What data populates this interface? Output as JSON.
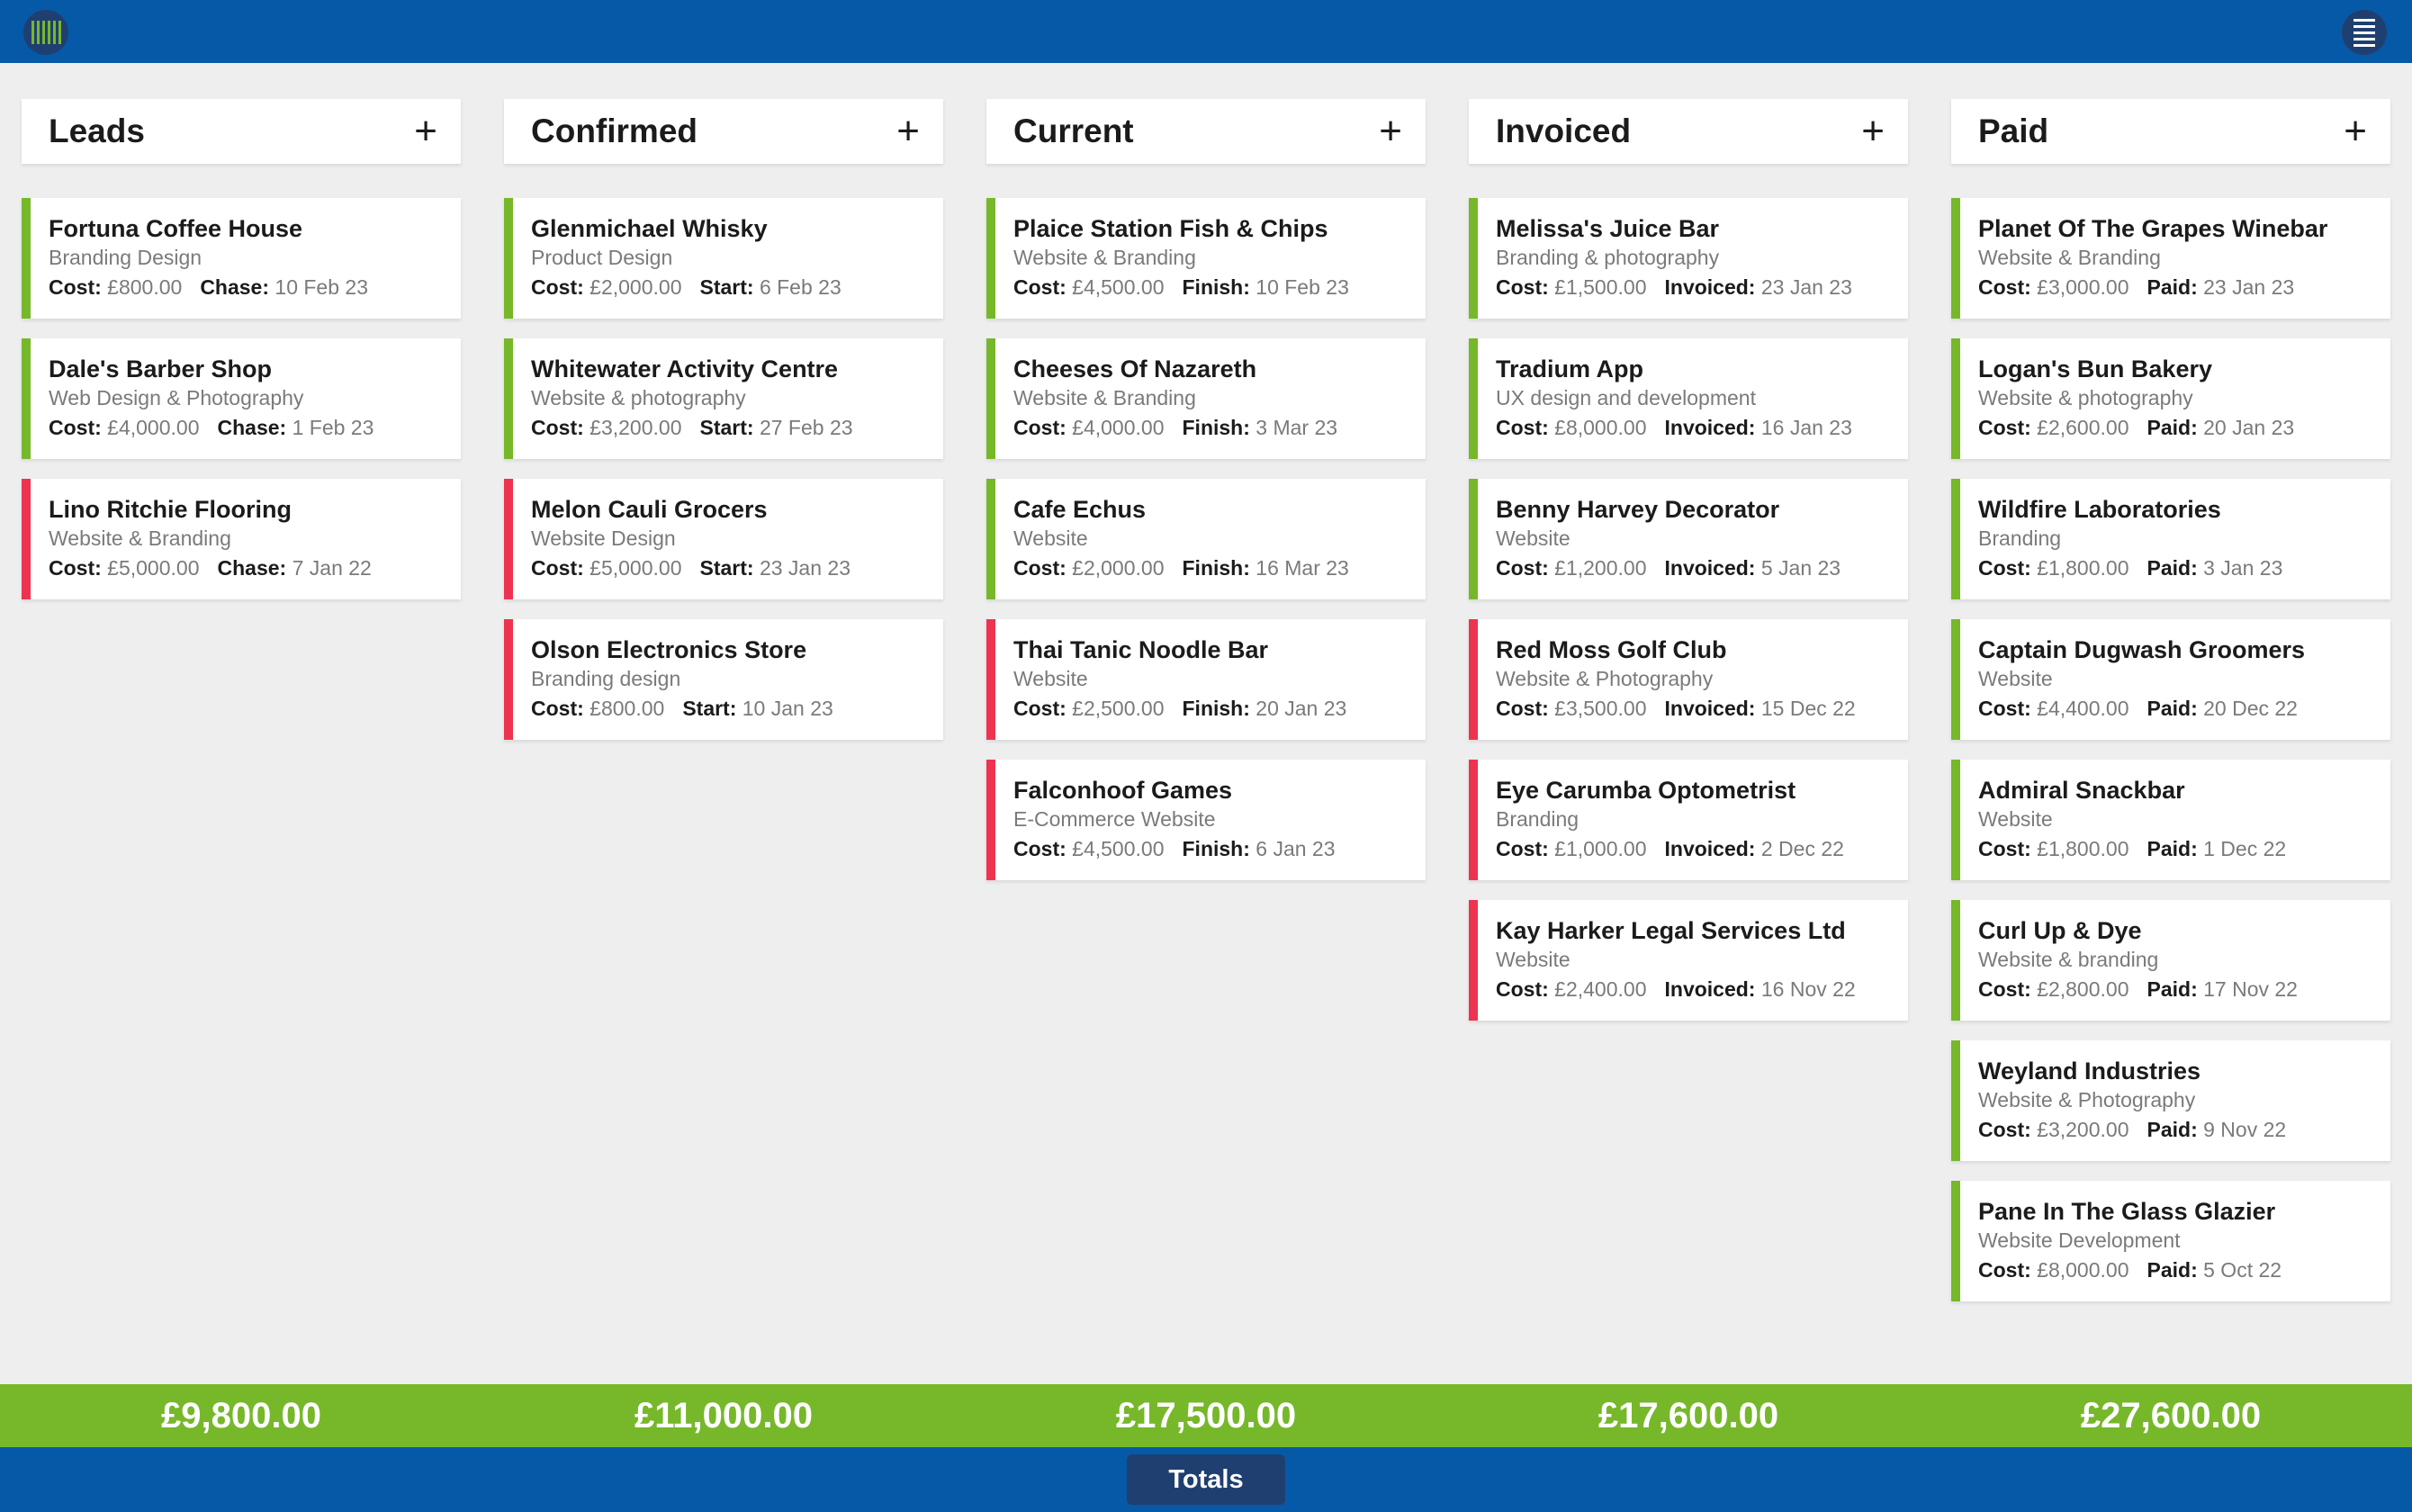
{
  "columns": [
    {
      "title": "Leads",
      "add_label": "+",
      "total": "£9,800.00",
      "cards": [
        {
          "title": "Fortuna Coffee House",
          "subtitle": "Branding Design",
          "cost_label": "Cost:",
          "cost": "£800.00",
          "date_label": "Chase:",
          "date": "10 Feb 23",
          "status": "green"
        },
        {
          "title": "Dale's Barber Shop",
          "subtitle": "Web Design & Photography",
          "cost_label": "Cost:",
          "cost": "£4,000.00",
          "date_label": "Chase:",
          "date": "1 Feb 23",
          "status": "green"
        },
        {
          "title": "Lino Ritchie Flooring",
          "subtitle": "Website & Branding",
          "cost_label": "Cost:",
          "cost": "£5,000.00",
          "date_label": "Chase:",
          "date": "7 Jan 22",
          "status": "red"
        }
      ]
    },
    {
      "title": "Confirmed",
      "add_label": "+",
      "total": "£11,000.00",
      "cards": [
        {
          "title": "Glenmichael Whisky",
          "subtitle": "Product Design",
          "cost_label": "Cost:",
          "cost": "£2,000.00",
          "date_label": "Start:",
          "date": "6 Feb 23",
          "status": "green"
        },
        {
          "title": "Whitewater Activity Centre",
          "subtitle": "Website & photography",
          "cost_label": "Cost:",
          "cost": "£3,200.00",
          "date_label": "Start:",
          "date": "27 Feb 23",
          "status": "green"
        },
        {
          "title": "Melon Cauli Grocers",
          "subtitle": "Website Design",
          "cost_label": "Cost:",
          "cost": "£5,000.00",
          "date_label": "Start:",
          "date": "23 Jan 23",
          "status": "red"
        },
        {
          "title": "Olson Electronics Store",
          "subtitle": "Branding design",
          "cost_label": "Cost:",
          "cost": "£800.00",
          "date_label": "Start:",
          "date": "10 Jan 23",
          "status": "red"
        }
      ]
    },
    {
      "title": "Current",
      "add_label": "+",
      "total": "£17,500.00",
      "cards": [
        {
          "title": "Plaice Station Fish & Chips",
          "subtitle": "Website & Branding",
          "cost_label": "Cost:",
          "cost": "£4,500.00",
          "date_label": "Finish:",
          "date": "10 Feb 23",
          "status": "green"
        },
        {
          "title": "Cheeses Of Nazareth",
          "subtitle": "Website & Branding",
          "cost_label": "Cost:",
          "cost": "£4,000.00",
          "date_label": "Finish:",
          "date": "3 Mar 23",
          "status": "green"
        },
        {
          "title": "Cafe Echus",
          "subtitle": "Website",
          "cost_label": "Cost:",
          "cost": "£2,000.00",
          "date_label": "Finish:",
          "date": "16 Mar 23",
          "status": "green"
        },
        {
          "title": "Thai Tanic Noodle Bar",
          "subtitle": "Website",
          "cost_label": "Cost:",
          "cost": "£2,500.00",
          "date_label": "Finish:",
          "date": "20 Jan 23",
          "status": "red"
        },
        {
          "title": "Falconhoof Games",
          "subtitle": "E-Commerce Website",
          "cost_label": "Cost:",
          "cost": "£4,500.00",
          "date_label": "Finish:",
          "date": "6 Jan 23",
          "status": "red"
        }
      ]
    },
    {
      "title": "Invoiced",
      "add_label": "+",
      "total": "£17,600.00",
      "cards": [
        {
          "title": "Melissa's Juice Bar",
          "subtitle": "Branding & photography",
          "cost_label": "Cost:",
          "cost": "£1,500.00",
          "date_label": "Invoiced:",
          "date": "23 Jan 23",
          "status": "green"
        },
        {
          "title": "Tradium App",
          "subtitle": "UX design and development",
          "cost_label": "Cost:",
          "cost": "£8,000.00",
          "date_label": "Invoiced:",
          "date": "16 Jan 23",
          "status": "green"
        },
        {
          "title": "Benny Harvey Decorator",
          "subtitle": "Website",
          "cost_label": "Cost:",
          "cost": "£1,200.00",
          "date_label": "Invoiced:",
          "date": "5 Jan 23",
          "status": "green"
        },
        {
          "title": "Red Moss Golf Club",
          "subtitle": "Website & Photography",
          "cost_label": "Cost:",
          "cost": "£3,500.00",
          "date_label": "Invoiced:",
          "date": "15 Dec 22",
          "status": "red"
        },
        {
          "title": "Eye Carumba Optometrist",
          "subtitle": "Branding",
          "cost_label": "Cost:",
          "cost": "£1,000.00",
          "date_label": "Invoiced:",
          "date": "2 Dec 22",
          "status": "red"
        },
        {
          "title": "Kay Harker Legal Services Ltd",
          "subtitle": "Website",
          "cost_label": "Cost:",
          "cost": "£2,400.00",
          "date_label": "Invoiced:",
          "date": "16 Nov 22",
          "status": "red"
        }
      ]
    },
    {
      "title": "Paid",
      "add_label": "+",
      "total": "£27,600.00",
      "cards": [
        {
          "title": "Planet Of The Grapes Winebar",
          "subtitle": "Website & Branding",
          "cost_label": "Cost:",
          "cost": "£3,000.00",
          "date_label": "Paid:",
          "date": "23 Jan 23",
          "status": "green"
        },
        {
          "title": "Logan's Bun Bakery",
          "subtitle": "Website & photography",
          "cost_label": "Cost:",
          "cost": "£2,600.00",
          "date_label": "Paid:",
          "date": "20 Jan 23",
          "status": "green"
        },
        {
          "title": "Wildfire Laboratories",
          "subtitle": "Branding",
          "cost_label": "Cost:",
          "cost": "£1,800.00",
          "date_label": "Paid:",
          "date": "3 Jan 23",
          "status": "green"
        },
        {
          "title": "Captain Dugwash Groomers",
          "subtitle": "Website",
          "cost_label": "Cost:",
          "cost": "£4,400.00",
          "date_label": "Paid:",
          "date": "20 Dec 22",
          "status": "green"
        },
        {
          "title": "Admiral Snackbar",
          "subtitle": "Website",
          "cost_label": "Cost:",
          "cost": "£1,800.00",
          "date_label": "Paid:",
          "date": "1 Dec 22",
          "status": "green"
        },
        {
          "title": "Curl Up & Dye",
          "subtitle": "Website & branding",
          "cost_label": "Cost:",
          "cost": "£2,800.00",
          "date_label": "Paid:",
          "date": "17 Nov 22",
          "status": "green"
        },
        {
          "title": "Weyland Industries",
          "subtitle": "Website & Photography",
          "cost_label": "Cost:",
          "cost": "£3,200.00",
          "date_label": "Paid:",
          "date": "9 Nov 22",
          "status": "green"
        },
        {
          "title": "Pane In The Glass Glazier",
          "subtitle": "Website Development",
          "cost_label": "Cost:",
          "cost": "£8,000.00",
          "date_label": "Paid:",
          "date": "5 Oct 22",
          "status": "green"
        }
      ]
    }
  ],
  "footer": {
    "totals_tab_label": "Totals"
  },
  "icons": {
    "app_logo": "barcode-logo-icon",
    "menu": "hamburger-menu-icon"
  },
  "colors": {
    "primary": "#0659a6",
    "accent_green": "#76b82a",
    "alert_red": "#ee3350",
    "dark_navy": "#1f3f70"
  }
}
